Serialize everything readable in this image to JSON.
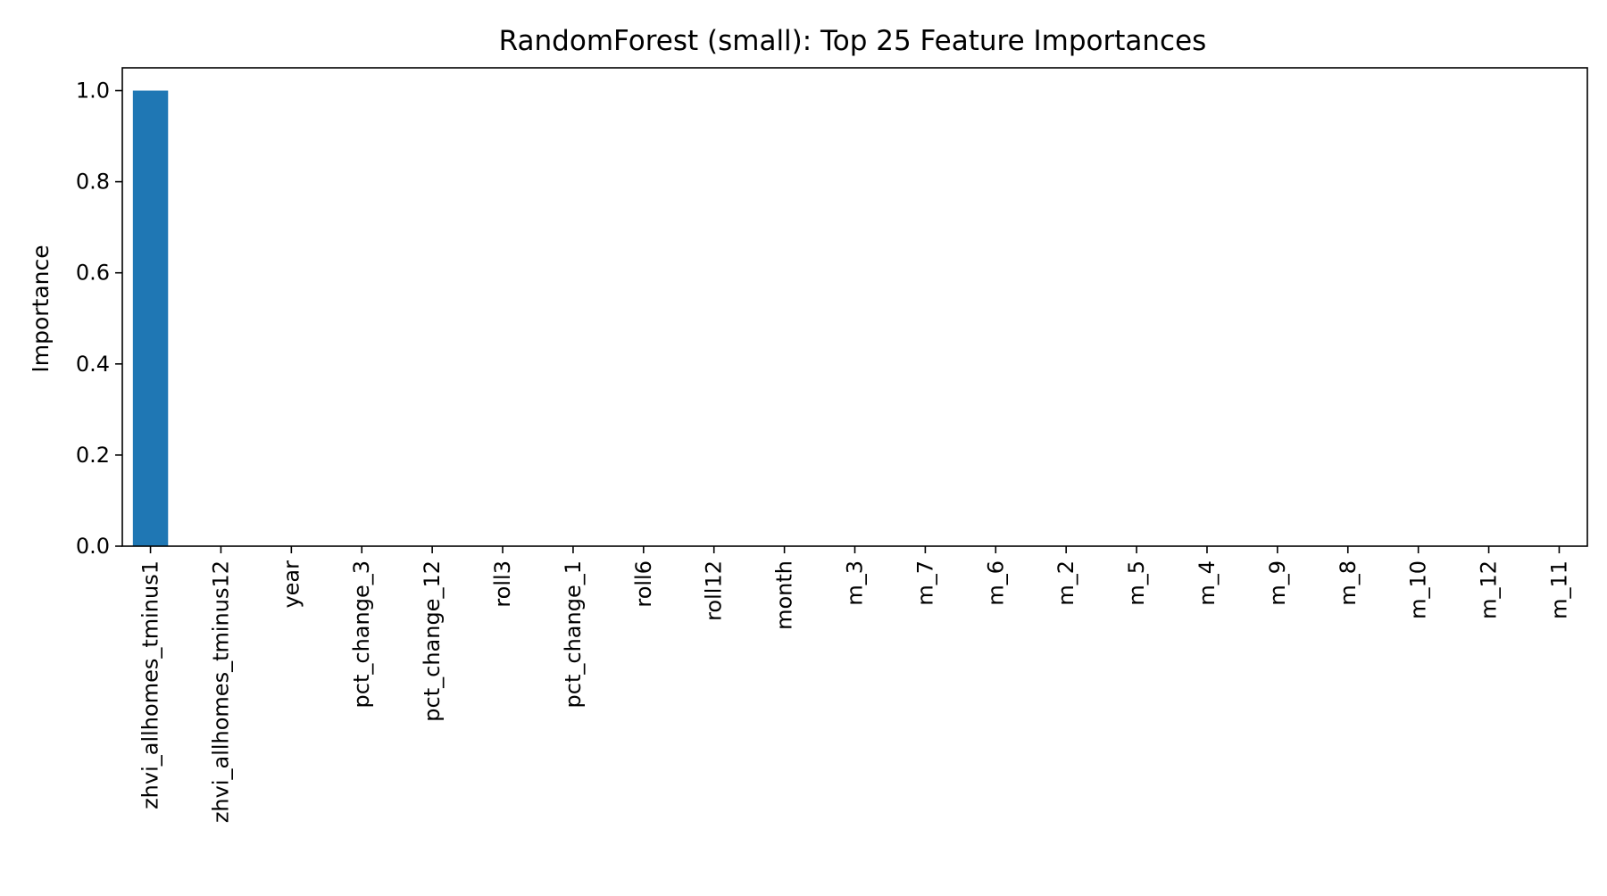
{
  "chart_data": {
    "type": "bar",
    "title": "RandomForest (small): Top 25 Feature Importances",
    "xlabel": "",
    "ylabel": "Importance",
    "categories": [
      "zhvi_allhomes_tminus1",
      "zhvi_allhomes_tminus12",
      "year",
      "pct_change_3",
      "pct_change_12",
      "roll3",
      "pct_change_1",
      "roll6",
      "roll12",
      "month",
      "m_3",
      "m_7",
      "m_6",
      "m_2",
      "m_5",
      "m_4",
      "m_9",
      "m_8",
      "m_10",
      "m_12",
      "m_11"
    ],
    "values": [
      1.0,
      0,
      0,
      0,
      0,
      0,
      0,
      0,
      0,
      0,
      0,
      0,
      0,
      0,
      0,
      0,
      0,
      0,
      0,
      0,
      0
    ],
    "ylim": [
      0,
      1.05
    ],
    "yticks": [
      0.0,
      0.2,
      0.4,
      0.6,
      0.8,
      1.0
    ],
    "ytick_labels": [
      "0.0",
      "0.2",
      "0.4",
      "0.6",
      "0.8",
      "1.0"
    ],
    "grid": false,
    "colors": {
      "bar": "#1f77b4",
      "axes": "#000000",
      "background": "#ffffff"
    }
  }
}
